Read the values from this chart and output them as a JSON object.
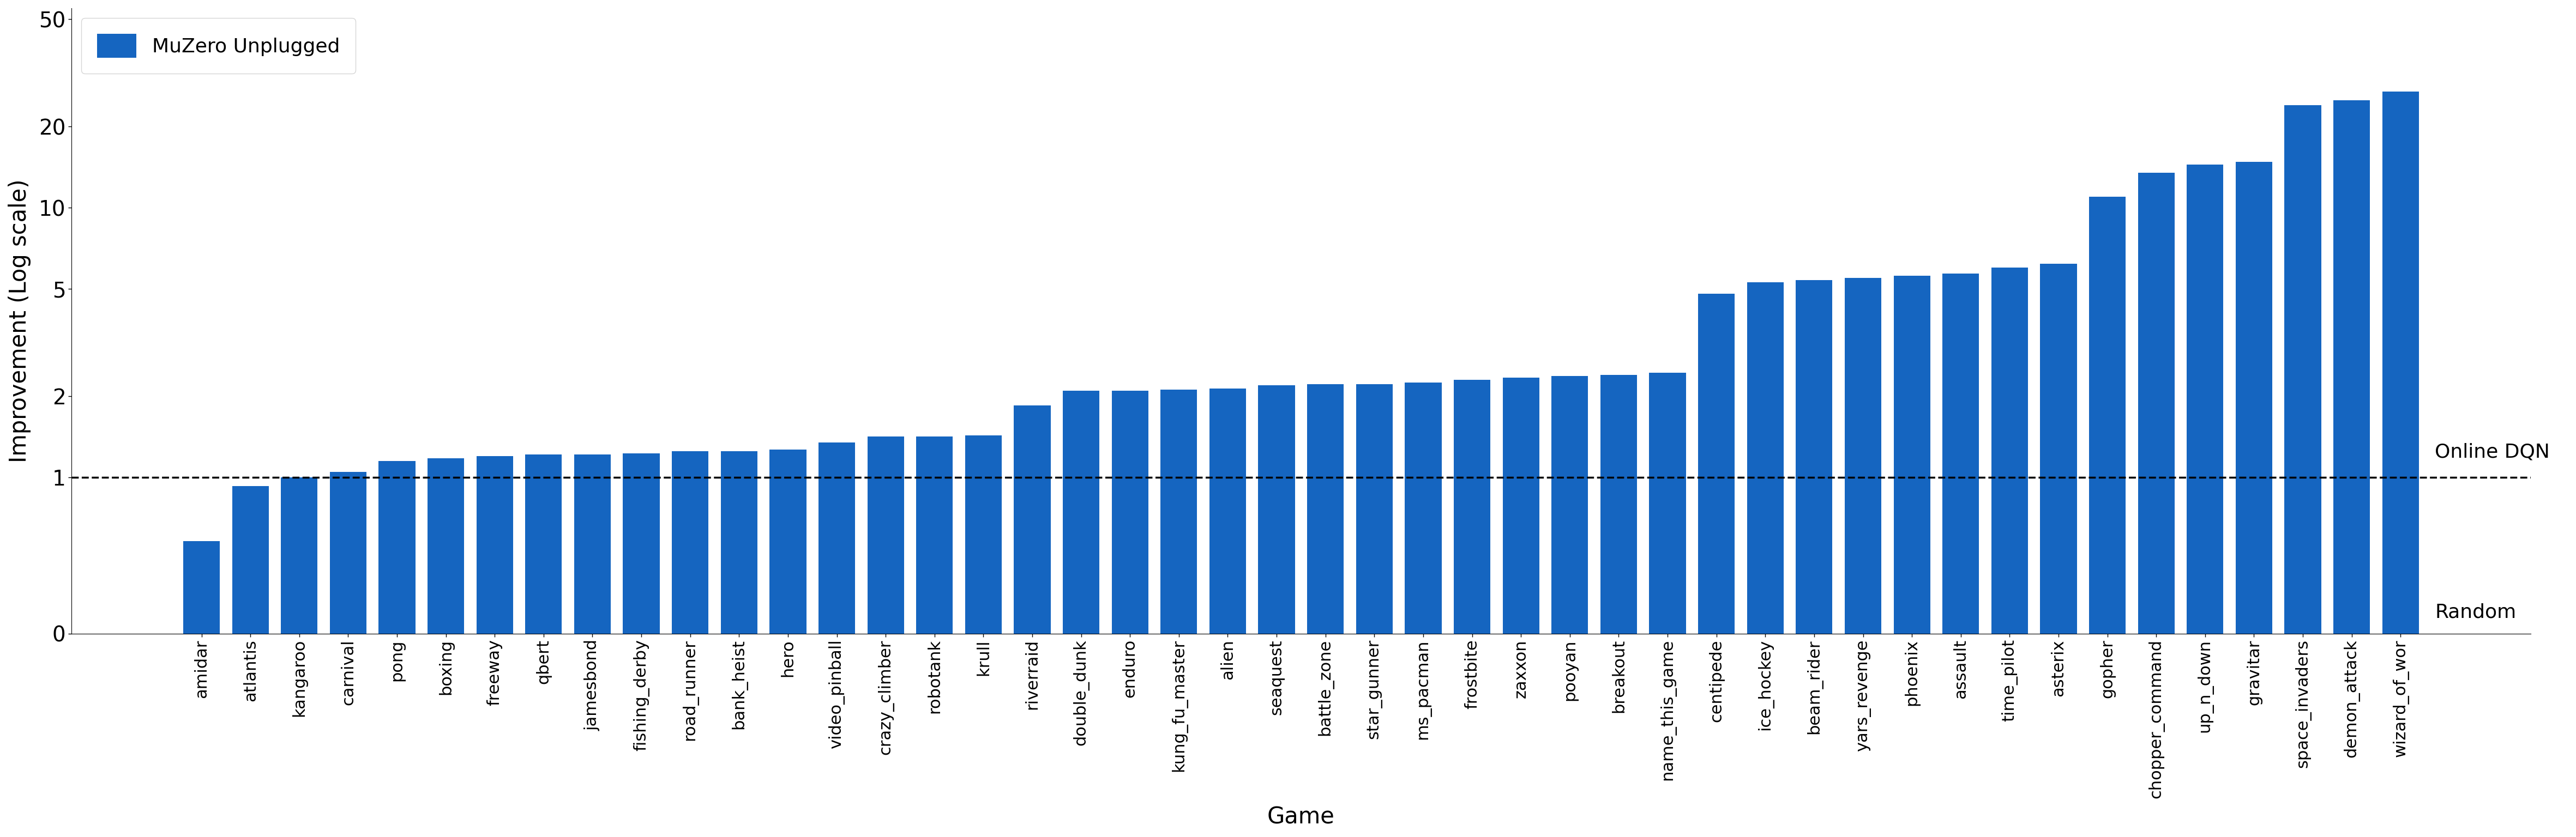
{
  "title": "",
  "xlabel": "Game",
  "ylabel": "Improvement (Log scale)",
  "bar_color": "#1565C0",
  "legend_label": "MuZero Unplugged",
  "dashed_line_y": 1.0,
  "online_dqn_label": "Online DQN",
  "random_label": "Random",
  "categories": [
    "amidar",
    "atlantis",
    "kangaroo",
    "carnival",
    "pong",
    "boxing",
    "freeway",
    "qbert",
    "jamesbond",
    "fishing_derby",
    "road_runner",
    "bank_heist",
    "hero",
    "video_pinball",
    "crazy_climber",
    "robotank",
    "krull",
    "riverraid",
    "double_dunk",
    "enduro",
    "kung_fu_master",
    "alien",
    "seaquest",
    "battle_zone",
    "star_gunner",
    "ms_pacman",
    "frostbite",
    "zaxxon",
    "pooyan",
    "breakout",
    "name_this_game",
    "centipede",
    "ice_hockey",
    "beam_rider",
    "yars_revenge",
    "phoenix",
    "assault",
    "time_pilot",
    "asterix",
    "gopher",
    "chopper_command",
    "up_n_down",
    "gravitar",
    "space_invaders",
    "demon_attack",
    "wizard_of_wor"
  ],
  "values": [
    0.58,
    0.93,
    1.0,
    1.05,
    1.15,
    1.18,
    1.2,
    1.22,
    1.22,
    1.23,
    1.25,
    1.25,
    1.27,
    1.35,
    1.42,
    1.42,
    1.43,
    1.85,
    2.1,
    2.1,
    2.12,
    2.14,
    2.2,
    2.22,
    2.22,
    2.25,
    2.3,
    2.35,
    2.38,
    2.4,
    2.45,
    4.8,
    5.3,
    5.4,
    5.5,
    5.6,
    5.7,
    6.0,
    6.2,
    11.0,
    13.5,
    14.5,
    14.8,
    24.0,
    25.0,
    27.0
  ],
  "yticks": [
    0,
    1,
    2,
    5,
    10,
    20,
    50
  ],
  "ytick_labels": [
    "0",
    "1",
    "2",
    "5",
    "10",
    "20",
    "50"
  ],
  "ylim_max": 55,
  "linthresh": 0.5,
  "linscale": 0.25
}
